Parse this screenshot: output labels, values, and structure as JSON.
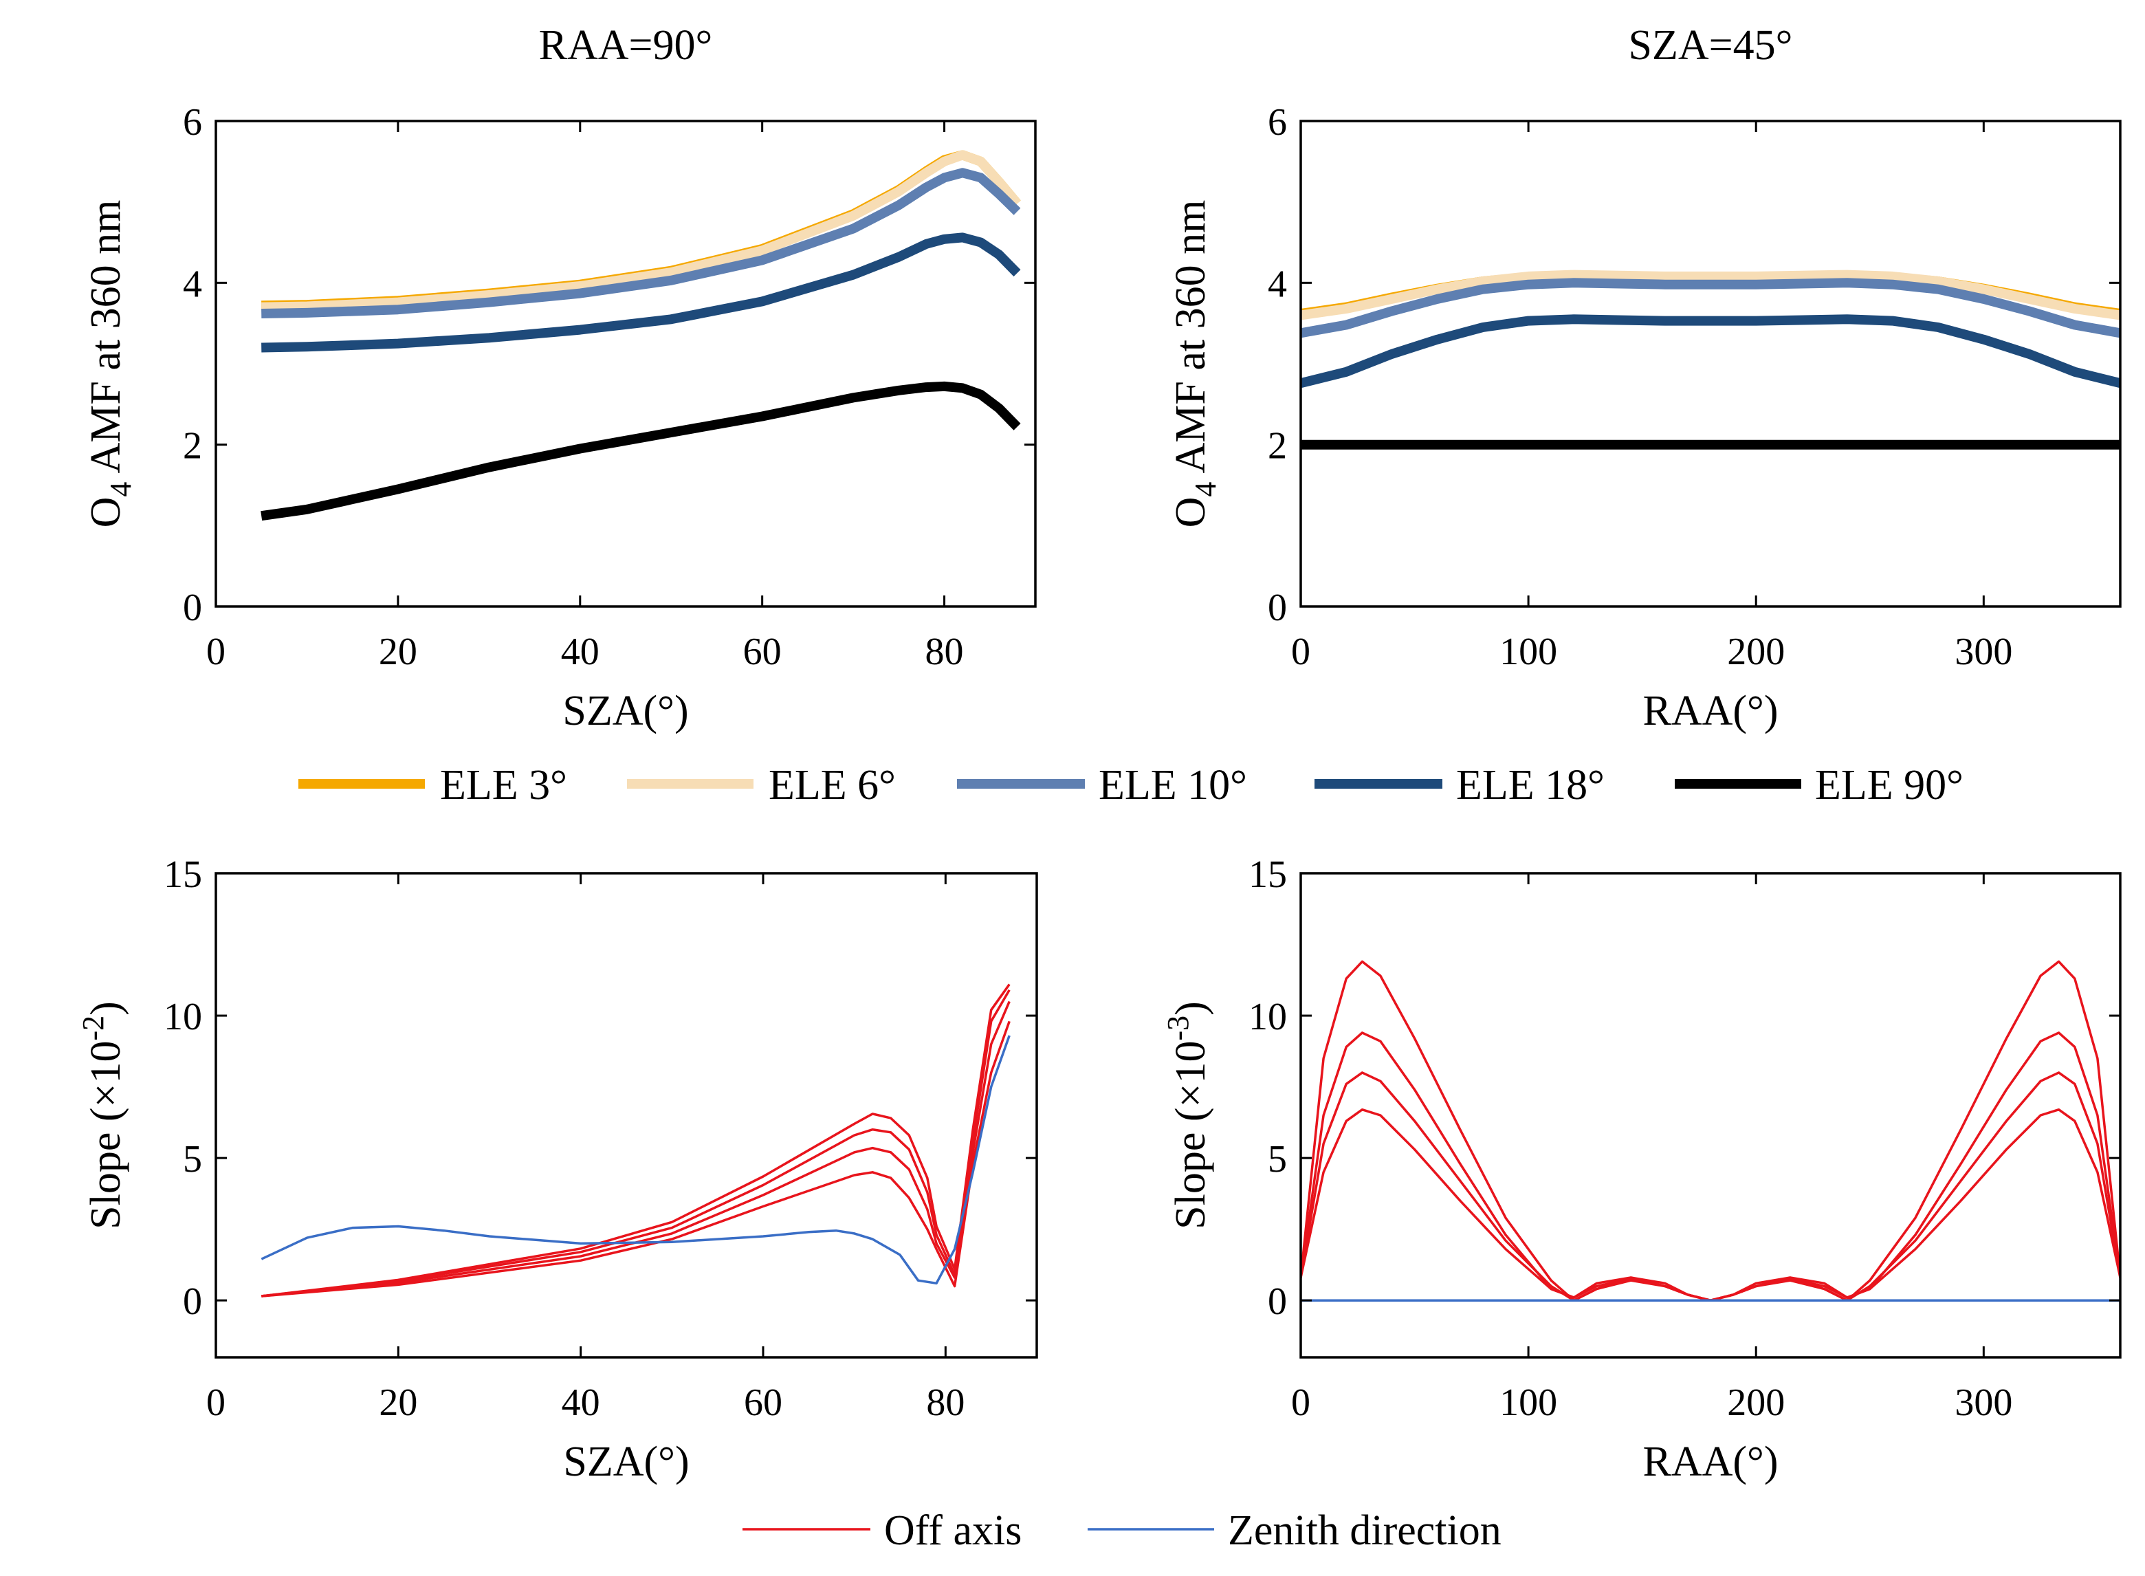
{
  "chart_data": [
    {
      "id": "amf-sza",
      "type": "line",
      "title": "RAA=90°",
      "xlabel": "SZA(°)",
      "ylabel_parts": [
        "O",
        "4",
        " AMF at 360 nm"
      ],
      "xlim": [
        0,
        90
      ],
      "ylim": [
        0,
        6
      ],
      "xticks": [
        0,
        20,
        40,
        60,
        80
      ],
      "yticks": [
        0,
        2,
        4,
        6
      ],
      "series": [
        {
          "name": "ELE 3°",
          "color": "#F5A800",
          "width": "thick",
          "x": [
            5,
            10,
            20,
            30,
            40,
            50,
            60,
            70,
            75,
            78,
            80,
            82,
            84,
            86,
            88
          ],
          "y": [
            3.72,
            3.73,
            3.78,
            3.87,
            3.98,
            4.15,
            4.42,
            4.85,
            5.15,
            5.38,
            5.52,
            5.58,
            5.5,
            5.25,
            4.98
          ]
        },
        {
          "name": "ELE 6°",
          "color": "#F7DDB5",
          "width": "thick",
          "x": [
            5,
            10,
            20,
            30,
            40,
            50,
            60,
            70,
            75,
            78,
            80,
            82,
            84,
            86,
            88
          ],
          "y": [
            3.7,
            3.71,
            3.76,
            3.85,
            3.96,
            4.13,
            4.4,
            4.83,
            5.13,
            5.36,
            5.5,
            5.58,
            5.5,
            5.25,
            4.98
          ]
        },
        {
          "name": "ELE 10°",
          "color": "#5E7FB1",
          "width": "thick",
          "x": [
            5,
            10,
            20,
            30,
            40,
            50,
            60,
            70,
            75,
            78,
            80,
            82,
            84,
            86,
            88
          ],
          "y": [
            3.62,
            3.63,
            3.67,
            3.76,
            3.87,
            4.03,
            4.28,
            4.67,
            4.96,
            5.18,
            5.3,
            5.36,
            5.3,
            5.1,
            4.88
          ]
        },
        {
          "name": "ELE 18°",
          "color": "#1E4A7A",
          "width": "thick",
          "x": [
            5,
            10,
            20,
            30,
            40,
            50,
            60,
            70,
            75,
            78,
            80,
            82,
            84,
            86,
            88
          ],
          "y": [
            3.2,
            3.21,
            3.25,
            3.32,
            3.42,
            3.55,
            3.77,
            4.1,
            4.32,
            4.48,
            4.54,
            4.56,
            4.5,
            4.35,
            4.12
          ]
        },
        {
          "name": "ELE 90°",
          "color": "#000000",
          "width": "thick",
          "x": [
            5,
            10,
            20,
            30,
            40,
            50,
            60,
            70,
            75,
            78,
            80,
            82,
            84,
            86,
            88
          ],
          "y": [
            1.12,
            1.2,
            1.45,
            1.72,
            1.95,
            2.15,
            2.35,
            2.58,
            2.67,
            2.71,
            2.72,
            2.7,
            2.62,
            2.45,
            2.22
          ]
        }
      ]
    },
    {
      "id": "amf-raa",
      "type": "line",
      "title": "SZA=45°",
      "xlabel": "RAA(°)",
      "ylabel_parts": [
        "O",
        "4",
        " AMF at 360 nm"
      ],
      "xlim": [
        0,
        360
      ],
      "ylim": [
        0,
        6
      ],
      "xticks": [
        0,
        100,
        200,
        300
      ],
      "yticks": [
        0,
        2,
        4,
        6
      ],
      "series": [
        {
          "name": "ELE 3°",
          "color": "#F5A800",
          "width": "thick",
          "x": [
            0,
            20,
            40,
            60,
            80,
            100,
            120,
            140,
            160,
            180,
            200,
            220,
            240,
            260,
            280,
            300,
            320,
            340,
            360
          ],
          "y": [
            3.62,
            3.7,
            3.82,
            3.93,
            4.02,
            4.07,
            4.08,
            4.07,
            4.06,
            4.06,
            4.06,
            4.07,
            4.08,
            4.07,
            4.02,
            3.93,
            3.82,
            3.7,
            3.62
          ]
        },
        {
          "name": "ELE 6°",
          "color": "#F7DDB5",
          "width": "thick",
          "x": [
            0,
            20,
            40,
            60,
            80,
            100,
            120,
            140,
            160,
            180,
            200,
            220,
            240,
            260,
            280,
            300,
            320,
            340,
            360
          ],
          "y": [
            3.6,
            3.68,
            3.8,
            3.92,
            4.02,
            4.08,
            4.1,
            4.09,
            4.08,
            4.08,
            4.08,
            4.09,
            4.1,
            4.08,
            4.02,
            3.92,
            3.8,
            3.68,
            3.6
          ]
        },
        {
          "name": "ELE 10°",
          "color": "#5E7FB1",
          "width": "thick",
          "x": [
            0,
            20,
            40,
            60,
            80,
            100,
            120,
            140,
            160,
            180,
            200,
            220,
            240,
            260,
            280,
            300,
            320,
            340,
            360
          ],
          "y": [
            3.38,
            3.48,
            3.65,
            3.8,
            3.92,
            3.98,
            4.0,
            3.99,
            3.98,
            3.98,
            3.98,
            3.99,
            4.0,
            3.98,
            3.92,
            3.8,
            3.65,
            3.48,
            3.38
          ]
        },
        {
          "name": "ELE 18°",
          "color": "#1E4A7A",
          "width": "thick",
          "x": [
            0,
            20,
            40,
            60,
            80,
            100,
            120,
            140,
            160,
            180,
            200,
            220,
            240,
            260,
            280,
            300,
            320,
            340,
            360
          ],
          "y": [
            2.76,
            2.9,
            3.12,
            3.3,
            3.45,
            3.53,
            3.55,
            3.54,
            3.53,
            3.53,
            3.53,
            3.54,
            3.55,
            3.53,
            3.45,
            3.3,
            3.12,
            2.9,
            2.76
          ]
        },
        {
          "name": "ELE 90°",
          "color": "#000000",
          "width": "thick",
          "x": [
            0,
            360
          ],
          "y": [
            2.0,
            2.0
          ]
        }
      ]
    },
    {
      "id": "slope-sza",
      "type": "line",
      "title": "",
      "xlabel": "SZA(°)",
      "ylabel_parts": [
        "Slope (×10",
        "-2",
        ")"
      ],
      "xlim": [
        0,
        90
      ],
      "ylim": [
        -2,
        15
      ],
      "xticks": [
        0,
        20,
        40,
        60,
        80
      ],
      "yticks": [
        0,
        5,
        10,
        15
      ],
      "series": [
        {
          "name": "Off axis",
          "color": "#E8141C",
          "width": "thin",
          "x": [
            5,
            20,
            40,
            50,
            60,
            70,
            72,
            74,
            76,
            78,
            79,
            81,
            83,
            85,
            87
          ],
          "y": [
            0.15,
            0.55,
            1.4,
            2.15,
            3.3,
            4.4,
            4.5,
            4.3,
            3.6,
            2.5,
            1.8,
            0.5,
            4.8,
            8.0,
            9.8
          ]
        },
        {
          "name": "Off axis",
          "color": "#E8141C",
          "width": "thin",
          "x": [
            5,
            20,
            40,
            50,
            60,
            70,
            72,
            74,
            76,
            78,
            79,
            81,
            83,
            85,
            87
          ],
          "y": [
            0.15,
            0.62,
            1.55,
            2.35,
            3.7,
            5.2,
            5.35,
            5.2,
            4.6,
            3.2,
            2.0,
            0.8,
            5.2,
            9.0,
            10.5
          ]
        },
        {
          "name": "Off axis",
          "color": "#E8141C",
          "width": "thin",
          "x": [
            5,
            20,
            40,
            50,
            60,
            70,
            72,
            74,
            76,
            78,
            79,
            81,
            83,
            85,
            87
          ],
          "y": [
            0.15,
            0.68,
            1.7,
            2.55,
            4.05,
            5.8,
            6.0,
            5.9,
            5.3,
            3.8,
            2.3,
            0.9,
            5.6,
            9.8,
            10.9
          ]
        },
        {
          "name": "Off axis",
          "color": "#E8141C",
          "width": "thin",
          "x": [
            5,
            20,
            40,
            50,
            60,
            70,
            72,
            74,
            76,
            78,
            79,
            81,
            83,
            85,
            87
          ],
          "y": [
            0.15,
            0.72,
            1.82,
            2.75,
            4.35,
            6.2,
            6.55,
            6.4,
            5.8,
            4.3,
            2.6,
            1.1,
            6.0,
            10.2,
            11.1
          ]
        },
        {
          "name": "Zenith direction",
          "color": "#3A6EC6",
          "width": "thin",
          "x": [
            5,
            10,
            15,
            20,
            25,
            30,
            40,
            50,
            55,
            60,
            65,
            68,
            70,
            72,
            75,
            77,
            79,
            81,
            83,
            85,
            87
          ],
          "y": [
            1.45,
            2.2,
            2.55,
            2.6,
            2.45,
            2.25,
            2.0,
            2.05,
            2.15,
            2.25,
            2.4,
            2.45,
            2.35,
            2.15,
            1.6,
            0.7,
            0.6,
            1.8,
            4.5,
            7.5,
            9.3
          ]
        }
      ]
    },
    {
      "id": "slope-raa",
      "type": "line",
      "title": "",
      "xlabel": "RAA(°)",
      "ylabel_parts": [
        "Slope (×10",
        "-3",
        ")"
      ],
      "xlim": [
        0,
        360
      ],
      "ylim": [
        -2,
        15
      ],
      "xticks": [
        0,
        100,
        200,
        300
      ],
      "yticks": [
        0,
        5,
        10,
        15
      ],
      "series": [
        {
          "name": "Off axis",
          "color": "#E8141C",
          "width": "thin",
          "x": [
            0,
            10,
            20,
            27,
            35,
            50,
            70,
            90,
            110,
            120,
            130,
            145,
            160,
            170,
            180,
            190,
            200,
            215,
            230,
            240,
            250,
            270,
            290,
            310,
            325,
            333,
            340,
            350,
            360
          ],
          "y": [
            0.8,
            4.5,
            6.3,
            6.7,
            6.5,
            5.3,
            3.5,
            1.8,
            0.4,
            0.1,
            0.5,
            0.75,
            0.5,
            0.2,
            0.0,
            0.2,
            0.5,
            0.75,
            0.5,
            0.1,
            0.4,
            1.8,
            3.5,
            5.3,
            6.5,
            6.7,
            6.3,
            4.5,
            0.8
          ]
        },
        {
          "name": "Off axis",
          "color": "#E8141C",
          "width": "thin",
          "x": [
            0,
            10,
            20,
            27,
            35,
            50,
            70,
            90,
            110,
            120,
            130,
            145,
            160,
            170,
            180,
            190,
            200,
            215,
            230,
            240,
            250,
            270,
            290,
            310,
            325,
            333,
            340,
            350,
            360
          ],
          "y": [
            0.8,
            5.5,
            7.6,
            8.0,
            7.7,
            6.3,
            4.2,
            2.1,
            0.5,
            0.0,
            0.4,
            0.7,
            0.5,
            0.2,
            0.0,
            0.2,
            0.5,
            0.7,
            0.4,
            0.0,
            0.5,
            2.1,
            4.2,
            6.3,
            7.7,
            8.0,
            7.6,
            5.5,
            0.8
          ]
        },
        {
          "name": "Off axis",
          "color": "#E8141C",
          "width": "thin",
          "x": [
            0,
            10,
            20,
            27,
            35,
            50,
            70,
            90,
            110,
            120,
            130,
            145,
            160,
            170,
            180,
            190,
            200,
            215,
            230,
            240,
            250,
            270,
            290,
            310,
            325,
            333,
            340,
            350,
            360
          ],
          "y": [
            0.8,
            6.5,
            8.9,
            9.4,
            9.1,
            7.4,
            4.8,
            2.3,
            0.4,
            0.1,
            0.6,
            0.8,
            0.5,
            0.2,
            0.0,
            0.2,
            0.5,
            0.8,
            0.6,
            0.1,
            0.4,
            2.3,
            4.8,
            7.4,
            9.1,
            9.4,
            8.9,
            6.5,
            0.8
          ]
        },
        {
          "name": "Off axis",
          "color": "#E8141C",
          "width": "thin",
          "x": [
            0,
            10,
            20,
            27,
            35,
            50,
            70,
            90,
            110,
            120,
            130,
            145,
            160,
            170,
            180,
            190,
            200,
            215,
            230,
            240,
            250,
            270,
            290,
            310,
            325,
            333,
            340,
            350,
            360
          ],
          "y": [
            0.8,
            8.5,
            11.3,
            11.9,
            11.4,
            9.2,
            6.0,
            2.9,
            0.7,
            0.0,
            0.4,
            0.8,
            0.6,
            0.2,
            0.0,
            0.2,
            0.6,
            0.8,
            0.4,
            0.0,
            0.7,
            2.9,
            6.0,
            9.2,
            11.4,
            11.9,
            11.3,
            8.5,
            0.8
          ]
        },
        {
          "name": "Zenith direction",
          "color": "#3A6EC6",
          "width": "thin",
          "x": [
            0,
            360
          ],
          "y": [
            0.0,
            0.0
          ]
        }
      ]
    }
  ],
  "legends": {
    "amf": [
      {
        "label": "ELE 3°",
        "color": "#F5A800"
      },
      {
        "label": "ELE 6°",
        "color": "#F7DDB5"
      },
      {
        "label": "ELE 10°",
        "color": "#5E7FB1"
      },
      {
        "label": "ELE 18°",
        "color": "#1E4A7A"
      },
      {
        "label": "ELE 90°",
        "color": "#000000"
      }
    ],
    "slope": [
      {
        "label": "Off axis",
        "color": "#E8141C"
      },
      {
        "label": "Zenith direction",
        "color": "#3A6EC6"
      }
    ]
  }
}
